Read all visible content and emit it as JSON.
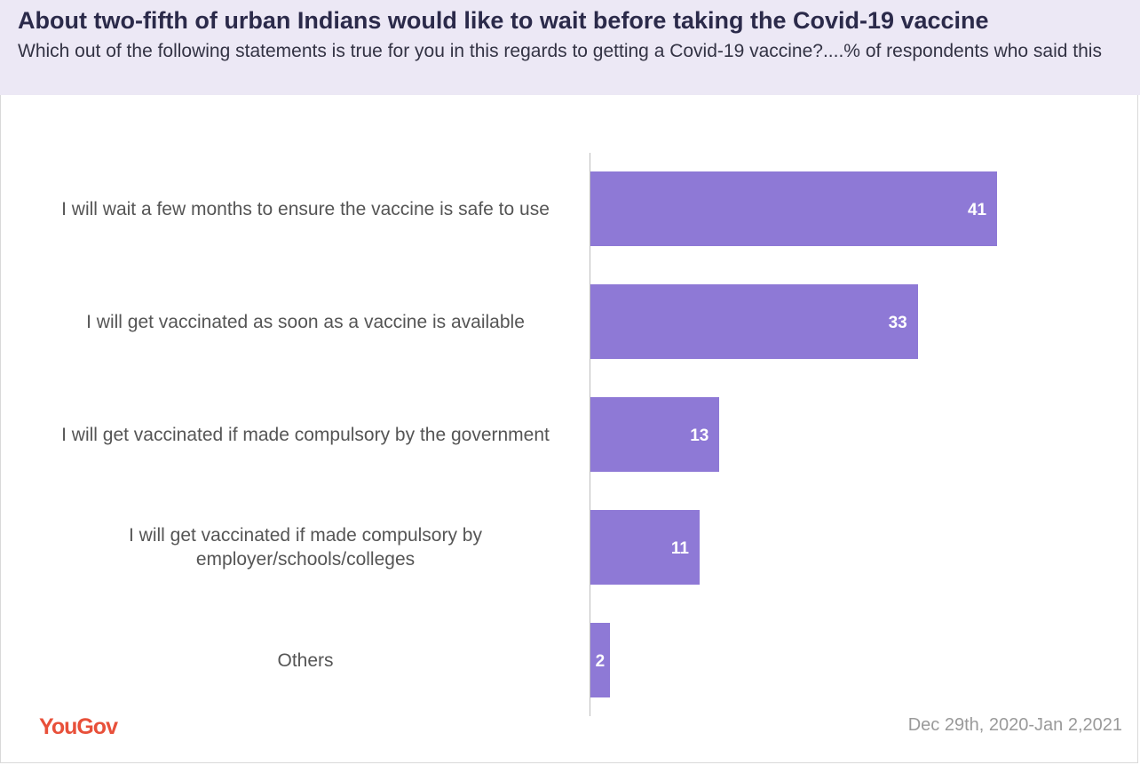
{
  "header": {
    "title": "About two-fifth of urban Indians would like to wait before taking the Covid-19 vaccine",
    "subtitle": "Which out of the following statements is true for you in this regards to getting a Covid-19 vaccine?....% of respondents who said this"
  },
  "footer": {
    "logo_text": "YouGov",
    "date": "Dec 29th, 2020-Jan 2,2021"
  },
  "colors": {
    "bar": "#8e79d6",
    "header_bg": "#ece8f5",
    "logo": "#e8503a"
  },
  "chart_data": {
    "type": "bar",
    "orientation": "horizontal",
    "categories": [
      "I will wait a few months to ensure the vaccine is safe to use",
      "I will get vaccinated as soon as a vaccine is available",
      "I will get vaccinated if made compulsory by the government",
      "I will get vaccinated if made compulsory by employer/schools/colleges",
      "Others"
    ],
    "values": [
      41,
      33,
      13,
      11,
      2
    ],
    "data_labels": [
      "41",
      "33",
      "13",
      "11",
      "2"
    ],
    "unit": "%",
    "xlim": [
      0,
      55
    ]
  }
}
